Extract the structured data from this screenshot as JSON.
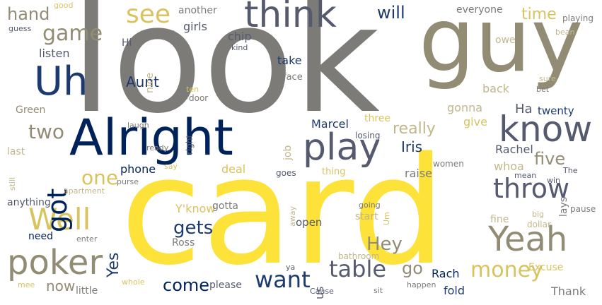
{
  "colors": {
    "yellow": "#fde23a",
    "gold": "#d9c35f",
    "khaki": "#c2b78a",
    "gray": "#7c7b78",
    "taupe": "#938c75",
    "slate": "#555a6f",
    "navy": "#1d3a6e",
    "darknavy": "#00225a"
  },
  "words": [
    {
      "text": "look",
      "color": "gray"
    },
    {
      "text": "card",
      "color": "yellow"
    },
    {
      "text": "guy",
      "color": "taupe"
    },
    {
      "text": "Alright",
      "color": "darknavy"
    },
    {
      "text": "think",
      "color": "slate"
    },
    {
      "text": "play",
      "color": "slate"
    },
    {
      "text": "know",
      "color": "slate"
    },
    {
      "text": "Uh",
      "color": "navy"
    },
    {
      "text": "Yeah",
      "color": "taupe"
    },
    {
      "text": "poker",
      "color": "taupe"
    },
    {
      "text": "throw",
      "color": "slate"
    },
    {
      "text": "see",
      "color": "gold"
    },
    {
      "text": "Well",
      "color": "gold"
    },
    {
      "text": "game",
      "color": "taupe"
    },
    {
      "text": "got",
      "color": "darknavy"
    },
    {
      "text": "table",
      "color": "slate"
    },
    {
      "text": "money",
      "color": "gold"
    },
    {
      "text": "want",
      "color": "navy"
    },
    {
      "text": "two",
      "color": "taupe"
    },
    {
      "text": "one",
      "color": "gold"
    },
    {
      "text": "Hey",
      "color": "taupe"
    },
    {
      "text": "gets",
      "color": "navy"
    },
    {
      "text": "will",
      "color": "navy"
    },
    {
      "text": "five",
      "color": "taupe"
    },
    {
      "text": "Iris",
      "color": "navy"
    },
    {
      "text": "really",
      "color": "khaki"
    },
    {
      "text": "hand",
      "color": "taupe"
    },
    {
      "text": "go",
      "color": "taupe"
    },
    {
      "text": "Yes",
      "color": "navy"
    },
    {
      "text": "come",
      "color": "darknavy"
    },
    {
      "text": "time",
      "color": "gold"
    },
    {
      "text": "now",
      "color": "taupe"
    },
    {
      "text": "Aunt",
      "color": "navy"
    },
    {
      "text": "back",
      "color": "khaki"
    },
    {
      "text": "Ha",
      "color": "slate"
    },
    {
      "text": "give",
      "color": "gold"
    },
    {
      "text": "gonna",
      "color": "khaki"
    },
    {
      "text": "Marcel",
      "color": "navy"
    },
    {
      "text": "Rachel",
      "color": "slate"
    },
    {
      "text": "whoa",
      "color": "khaki"
    },
    {
      "text": "phone",
      "color": "darknavy"
    },
    {
      "text": "Y'know",
      "color": "gold"
    },
    {
      "text": "deal",
      "color": "gold"
    },
    {
      "text": "raise",
      "color": "gray"
    },
    {
      "text": "Rach",
      "color": "darknavy"
    },
    {
      "text": "Thank",
      "color": "gray"
    },
    {
      "text": "Excuse",
      "color": "gold"
    },
    {
      "text": "fine",
      "color": "khaki"
    },
    {
      "text": "girls",
      "color": "slate"
    },
    {
      "text": "chip",
      "color": "slate"
    },
    {
      "text": "listen",
      "color": "slate"
    },
    {
      "text": "take",
      "color": "navy"
    },
    {
      "text": "twenty",
      "color": "navy"
    },
    {
      "text": "open",
      "color": "slate"
    },
    {
      "text": "us",
      "color": "slate"
    },
    {
      "text": "fold",
      "color": "navy"
    },
    {
      "text": "please",
      "color": "slate"
    },
    {
      "text": "need",
      "color": "darknavy"
    },
    {
      "text": "Ross",
      "color": "gray"
    },
    {
      "text": "gotta",
      "color": "gray"
    },
    {
      "text": "anything",
      "color": "slate"
    },
    {
      "text": "three",
      "color": "gold"
    },
    {
      "text": "start",
      "color": "khaki"
    },
    {
      "text": "job",
      "color": "khaki"
    },
    {
      "text": "everyone",
      "color": "gray"
    },
    {
      "text": "another",
      "color": "gray"
    },
    {
      "text": "Green",
      "color": "taupe"
    },
    {
      "text": "lays",
      "color": "gray"
    },
    {
      "text": "owe",
      "color": "khaki"
    },
    {
      "text": "little",
      "color": "gray"
    },
    {
      "text": "last",
      "color": "khaki"
    },
    {
      "text": "Hi",
      "color": "slate"
    },
    {
      "text": "nice",
      "color": "khaki"
    },
    {
      "text": "face",
      "color": "gray"
    },
    {
      "text": "door",
      "color": "gray"
    },
    {
      "text": "ten",
      "color": "gold"
    },
    {
      "text": "laugh",
      "color": "gray"
    },
    {
      "text": "ready",
      "color": "gray"
    },
    {
      "text": "right",
      "color": "slate"
    },
    {
      "text": "losing",
      "color": "slate"
    },
    {
      "text": "goes",
      "color": "slate"
    },
    {
      "text": "thing",
      "color": "gold"
    },
    {
      "text": "women",
      "color": "gray"
    },
    {
      "text": "mean",
      "color": "slate"
    },
    {
      "text": "win",
      "color": "slate"
    },
    {
      "text": "The",
      "color": "slate"
    },
    {
      "text": "pause",
      "color": "gray"
    },
    {
      "text": "big",
      "color": "khaki"
    },
    {
      "text": "dollar",
      "color": "khaki"
    },
    {
      "text": "bathroom",
      "color": "khaki"
    },
    {
      "text": "Um",
      "color": "gold"
    },
    {
      "text": "going",
      "color": "gray"
    },
    {
      "text": "away",
      "color": "khaki"
    },
    {
      "text": "apartment",
      "color": "khaki"
    },
    {
      "text": "purse",
      "color": "gray"
    },
    {
      "text": "say",
      "color": "gold"
    },
    {
      "text": "enter",
      "color": "gray"
    },
    {
      "text": "whole",
      "color": "gold"
    },
    {
      "text": "mee",
      "color": "gold"
    },
    {
      "text": "ya",
      "color": "slate"
    },
    {
      "text": "Cause",
      "color": "slate"
    },
    {
      "text": "sit",
      "color": "gray"
    },
    {
      "text": "happen",
      "color": "gray"
    },
    {
      "text": "good",
      "color": "gold"
    },
    {
      "text": "guess",
      "color": "slate"
    },
    {
      "text": "read",
      "color": "gray"
    },
    {
      "text": "kind",
      "color": "slate"
    },
    {
      "text": "playing",
      "color": "gray"
    },
    {
      "text": "bean",
      "color": "khaki"
    },
    {
      "text": "sure",
      "color": "khaki"
    },
    {
      "text": "bet",
      "color": "gray"
    },
    {
      "text": "still",
      "color": "khaki"
    }
  ]
}
